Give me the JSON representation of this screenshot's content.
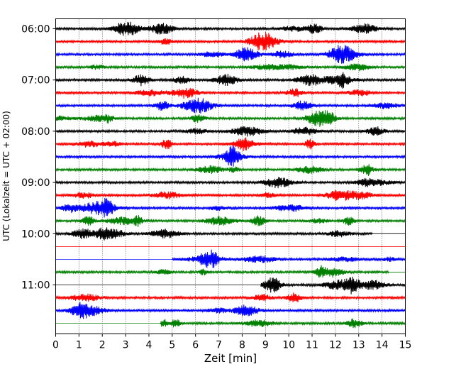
{
  "chart_data": {
    "type": "line",
    "title": "",
    "xlabel": "Zeit  [min]",
    "ylabel": "UTC (Lokalzeit = UTC + 02:00)",
    "xlim": [
      0,
      15
    ],
    "x_ticks": [
      "0",
      "1",
      "2",
      "3",
      "4",
      "5",
      "6",
      "7",
      "8",
      "9",
      "10",
      "11",
      "12",
      "13",
      "14",
      "15"
    ],
    "y_tick_labels": [
      "06:00",
      "07:00",
      "08:00",
      "09:00",
      "10:00",
      "11:00"
    ],
    "grid": "vertical dotted",
    "trace_colors": [
      "#000000",
      "#ff0000",
      "#0000ff",
      "#008000"
    ],
    "traces": [
      {
        "time": "06:00",
        "color": "#000000",
        "start": 0,
        "end": 15
      },
      {
        "time": "06:15",
        "color": "#ff0000",
        "start": 0,
        "end": 15
      },
      {
        "time": "06:30",
        "color": "#0000ff",
        "start": 0,
        "end": 15
      },
      {
        "time": "06:45",
        "color": "#008000",
        "start": 0,
        "end": 15
      },
      {
        "time": "07:00",
        "color": "#000000",
        "start": 0,
        "end": 15
      },
      {
        "time": "07:15",
        "color": "#ff0000",
        "start": 0,
        "end": 15
      },
      {
        "time": "07:30",
        "color": "#0000ff",
        "start": 0,
        "end": 15
      },
      {
        "time": "07:45",
        "color": "#008000",
        "start": 0,
        "end": 15
      },
      {
        "time": "08:00",
        "color": "#000000",
        "start": 0,
        "end": 15
      },
      {
        "time": "08:15",
        "color": "#ff0000",
        "start": 0,
        "end": 15
      },
      {
        "time": "08:30",
        "color": "#0000ff",
        "start": 0,
        "end": 15
      },
      {
        "time": "08:45",
        "color": "#008000",
        "start": 0,
        "end": 15
      },
      {
        "time": "09:00",
        "color": "#000000",
        "start": 0,
        "end": 15
      },
      {
        "time": "09:15",
        "color": "#ff0000",
        "start": 0,
        "end": 15
      },
      {
        "time": "09:30",
        "color": "#0000ff",
        "start": 0,
        "end": 15
      },
      {
        "time": "09:45",
        "color": "#008000",
        "start": 0,
        "end": 15
      },
      {
        "time": "10:00",
        "color": "#000000",
        "start": 0,
        "end": 13.6
      },
      {
        "time": "10:15",
        "color": "#ff0000",
        "start": null,
        "end": null
      },
      {
        "time": "10:30",
        "color": "#0000ff",
        "start": 5,
        "end": 15
      },
      {
        "time": "10:45",
        "color": "#008000",
        "start": 0,
        "end": 14.3
      },
      {
        "time": "11:00",
        "color": "#000000",
        "start": 8.8,
        "end": 15
      },
      {
        "time": "11:15",
        "color": "#ff0000",
        "start": 0,
        "end": 15
      },
      {
        "time": "11:30",
        "color": "#0000ff",
        "start": 0,
        "end": 15
      },
      {
        "time": "11:45",
        "color": "#008000",
        "start": 4.5,
        "end": 15
      }
    ]
  }
}
